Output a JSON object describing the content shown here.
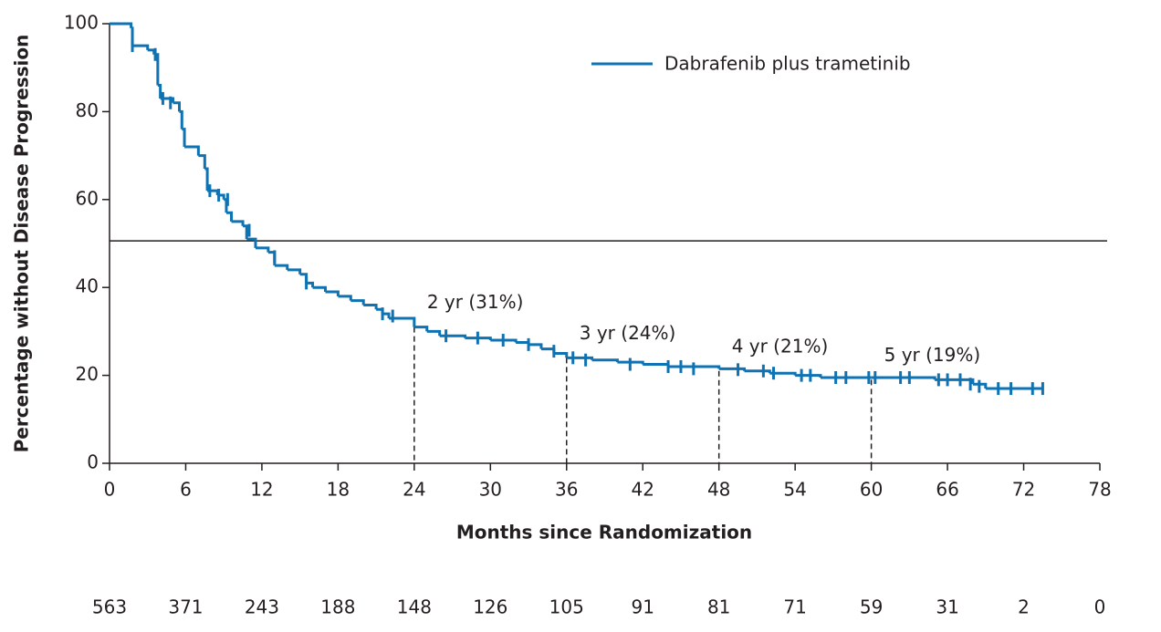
{
  "chart_data": {
    "type": "km",
    "xlabel": "Months since Randomization",
    "ylabel": "Percentage without Disease Progression",
    "xlim": [
      0,
      78
    ],
    "xticks": [
      0,
      6,
      12,
      18,
      24,
      30,
      36,
      42,
      48,
      54,
      60,
      66,
      72,
      78
    ],
    "ylim": [
      0,
      100
    ],
    "yticks": [
      0,
      20,
      40,
      60,
      80,
      100
    ],
    "reference_line": 50.6,
    "series": [
      {
        "name": "Dabrafenib plus trametinib",
        "color": "#0e72b3",
        "x": [
          0,
          1.7,
          1.8,
          3,
          3.5,
          3.8,
          4,
          5,
          5.5,
          5.7,
          5.9,
          7,
          7.5,
          7.7,
          8.5,
          9,
          9.2,
          9.6,
          10.5,
          10.8,
          11.5,
          12.5,
          13,
          14,
          15,
          15.5,
          16,
          17,
          18,
          19,
          20,
          21,
          21.5,
          22,
          24,
          25,
          26,
          28,
          30,
          32,
          33,
          34,
          35,
          36,
          38,
          40,
          42,
          44,
          48,
          50,
          52,
          54,
          56,
          60,
          63,
          65,
          68,
          69,
          73.5
        ],
        "values": [
          100,
          99,
          95,
          94,
          93,
          86,
          83,
          82,
          80,
          76,
          72,
          70,
          67,
          62,
          61,
          60,
          57,
          55,
          54,
          51,
          49,
          48,
          45,
          44,
          43,
          41,
          40,
          39,
          38,
          37,
          36,
          35,
          34,
          33,
          31,
          30,
          29,
          28.5,
          28,
          27.5,
          27,
          26,
          25,
          24,
          23.5,
          23,
          22.5,
          22,
          21.5,
          21,
          20.5,
          20,
          19.5,
          19.5,
          19.5,
          19,
          18,
          17,
          17
        ],
        "censor_x": [
          1.8,
          3.6,
          4.2,
          4.8,
          7.9,
          8.6,
          9.3,
          11,
          13,
          15.5,
          21.5,
          22.3,
          26.5,
          29,
          31,
          33,
          35,
          36.5,
          37.5,
          41,
          44,
          45,
          46,
          49.5,
          51.5,
          52.3,
          54.5,
          55.2,
          57.2,
          58,
          59.8,
          60.3,
          62.3,
          63,
          65.3,
          66,
          67,
          67.8,
          68.5,
          70,
          71,
          72.7,
          73.5
        ],
        "censor_y": [
          95,
          93,
          83,
          82,
          62,
          61,
          60,
          53,
          47,
          41,
          34,
          33.5,
          29,
          28.5,
          28,
          27,
          25.5,
          24,
          23.5,
          22.5,
          22,
          22,
          21.5,
          21.3,
          21,
          20.5,
          20,
          20,
          19.5,
          19.5,
          19.5,
          19.5,
          19.5,
          19.5,
          19,
          19,
          19,
          18,
          17.5,
          17,
          17,
          17,
          17
        ]
      }
    ],
    "milestones": [
      {
        "x": 24,
        "y": 31,
        "label": "2 yr (31%)"
      },
      {
        "x": 36,
        "y": 24,
        "label": "3 yr (24%)"
      },
      {
        "x": 48,
        "y": 21,
        "label": "4 yr (21%)"
      },
      {
        "x": 60,
        "y": 19,
        "label": "5 yr (19%)"
      }
    ],
    "at_risk": [
      563,
      371,
      243,
      188,
      148,
      126,
      105,
      91,
      81,
      71,
      59,
      31,
      2,
      0
    ]
  }
}
